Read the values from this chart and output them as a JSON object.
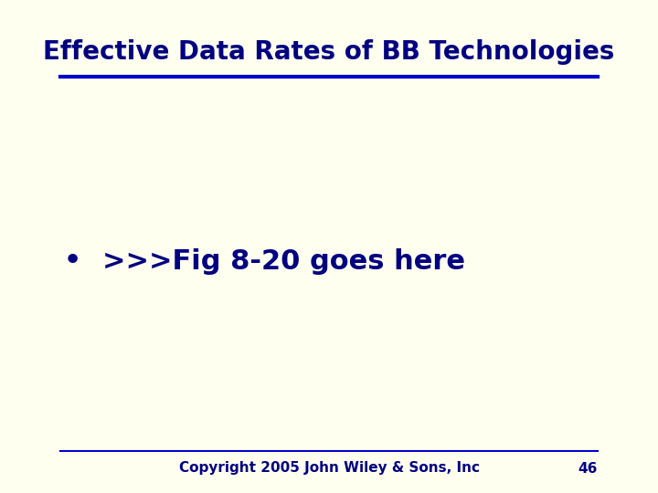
{
  "title": "Effective Data Rates of BB Technologies",
  "bullet_text": ">>>Fig 8-20 goes here",
  "footer_text": "Copyright 2005 John Wiley & Sons, Inc",
  "page_number": "46",
  "background_color": "#FFFFF0",
  "title_color": "#000080",
  "line_color": "#0000CC",
  "bullet_color": "#000080",
  "footer_color": "#000080",
  "title_fontsize": 20,
  "bullet_fontsize": 22,
  "footer_fontsize": 11,
  "page_fontsize": 11
}
